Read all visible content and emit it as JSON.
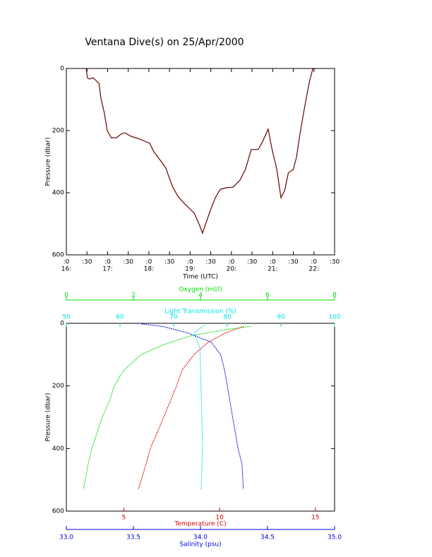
{
  "chart_data": [
    {
      "type": "line",
      "title": "Ventana Dive(s) on 25/Apr/2000",
      "xlabel": "Time (UTC)",
      "ylabel": "Pressure (dbar)",
      "color": "#6b0000",
      "x": [
        16.48,
        16.51,
        16.56,
        16.65,
        16.79,
        16.84,
        16.92,
        16.99,
        17.09,
        17.21,
        17.33,
        17.42,
        17.56,
        17.73,
        17.9,
        18.02,
        18.12,
        18.29,
        18.41,
        18.5,
        18.58,
        18.7,
        18.84,
        18.98,
        19.1,
        19.22,
        19.3,
        19.39,
        19.49,
        19.61,
        19.73,
        19.87,
        20.04,
        20.21,
        20.34,
        20.48,
        20.65,
        20.76,
        20.89,
        20.98,
        21.1,
        21.2,
        21.29,
        21.38,
        21.5,
        21.58,
        21.66,
        21.78,
        21.88,
        21.97,
        22.04
      ],
      "values": [
        0,
        30,
        34,
        30,
        48,
        98,
        143,
        200,
        223,
        223,
        211,
        207,
        218,
        225,
        234,
        241,
        268,
        298,
        320,
        355,
        382,
        411,
        432,
        450,
        466,
        502,
        530,
        495,
        457,
        416,
        389,
        384,
        382,
        359,
        325,
        261,
        261,
        234,
        195,
        257,
        325,
        416,
        393,
        336,
        325,
        284,
        211,
        120,
        48,
        2,
        0
      ],
      "xlim": [
        16,
        22.5
      ],
      "xticks": [
        {
          "value": 16,
          "label": ":0"
        },
        {
          "value": 16.5,
          "label": ":30"
        },
        {
          "value": 17,
          "label": ":0"
        },
        {
          "value": 17.5,
          "label": ":30"
        },
        {
          "value": 18,
          "label": ":0"
        },
        {
          "value": 18.5,
          "label": ":30"
        },
        {
          "value": 19,
          "label": ":0"
        },
        {
          "value": 19.5,
          "label": ":30"
        },
        {
          "value": 20,
          "label": ":0"
        },
        {
          "value": 20.5,
          "label": ":30"
        },
        {
          "value": 21,
          "label": ":0"
        },
        {
          "value": 21.5,
          "label": ":30"
        },
        {
          "value": 22,
          "label": ":0"
        },
        {
          "value": 22.5,
          "label": ":30"
        }
      ],
      "xticks_hours": [
        {
          "value": 16,
          "label": "16:"
        },
        {
          "value": 17,
          "label": "17:"
        },
        {
          "value": 18,
          "label": "18:"
        },
        {
          "value": 19,
          "label": "19:"
        },
        {
          "value": 20,
          "label": "20:"
        },
        {
          "value": 21,
          "label": "21:"
        },
        {
          "value": 22,
          "label": "22:"
        }
      ],
      "ylim": [
        600,
        0
      ],
      "yticks": [
        0,
        200,
        400,
        600
      ]
    },
    {
      "type": "profile",
      "ylabel": "Pressure (dbar)",
      "ylim": [
        600,
        0
      ],
      "yticks": [
        0,
        200,
        400,
        600
      ],
      "xaxes": [
        {
          "label": "Oxygen (ml/l)",
          "color": "#00dd00",
          "lim": [
            0,
            8
          ],
          "ticks": [
            0,
            2,
            4,
            6,
            8
          ]
        },
        {
          "label": "Light Transmission (%)",
          "color": "#00e0e0",
          "lim": [
            50,
            100
          ],
          "ticks": [
            50,
            60,
            70,
            80,
            90,
            100
          ]
        },
        {
          "label": "Temperature (C)",
          "color": "#dd0000",
          "lim": [
            2,
            16
          ],
          "ticks": [
            5,
            10,
            15
          ]
        },
        {
          "label": "Salinity (psu)",
          "color": "#0000dd",
          "lim": [
            33,
            35
          ],
          "ticks": [
            {
              "value": 33,
              "label": "33.0"
            },
            {
              "value": 33.5,
              "label": "33.5"
            },
            {
              "value": 34,
              "label": "34.0"
            },
            {
              "value": 34.5,
              "label": "34.5"
            },
            {
              "value": 35,
              "label": "35.0"
            }
          ]
        }
      ],
      "series": [
        {
          "axis": 0,
          "color": "#00dd00",
          "x": [
            5.49,
            4.76,
            3.71,
            2.86,
            2.23,
            1.71,
            1.43,
            1.28,
            1.07,
            0.76,
            0.65,
            0.51
          ],
          "values": [
            10,
            20,
            40,
            70,
            100,
            150,
            200,
            250,
            300,
            400,
            450,
            530
          ]
        },
        {
          "axis": 1,
          "color": "#00e0e0",
          "x": [
            75.8,
            73.8,
            74.9,
            75.1,
            75.4,
            75.1
          ],
          "values": [
            5,
            30,
            80,
            200,
            400,
            530
          ]
        },
        {
          "axis": 2,
          "color": "#dd0000",
          "x": [
            11.25,
            10.33,
            9.41,
            8.67,
            8.04,
            7.75,
            7.08,
            6.38,
            6.16,
            5.76
          ],
          "values": [
            10,
            30,
            60,
            100,
            150,
            200,
            300,
            400,
            450,
            530
          ]
        },
        {
          "axis": 3,
          "color": "#0000dd",
          "x": [
            33.56,
            33.72,
            33.9,
            34.08,
            34.15,
            34.18,
            34.2,
            34.24,
            34.28,
            34.31,
            34.32
          ],
          "values": [
            2,
            10,
            30,
            60,
            100,
            150,
            200,
            300,
            400,
            450,
            530
          ]
        }
      ]
    }
  ]
}
